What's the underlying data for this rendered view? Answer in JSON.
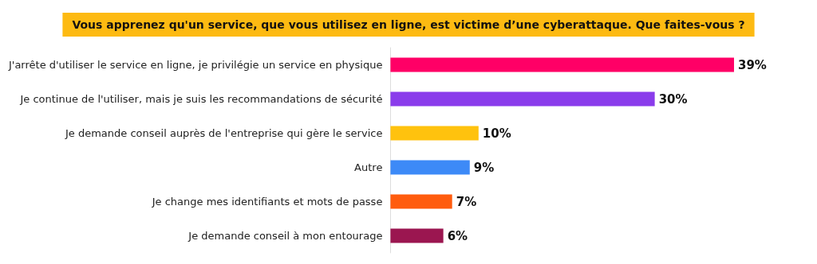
{
  "chart_data": {
    "type": "bar",
    "orientation": "horizontal",
    "title": "Vous apprenez qu'un service, que vous utilisez en ligne, est victime d’une cyberattaque. Que faites-vous ?",
    "categories": [
      "J'arrête d'utiliser le service en ligne, je privilégie un service en physique",
      "Je continue de l'utiliser, mais je suis les recommandations de sécurité",
      "Je demande conseil auprès de l'entreprise qui gère le service",
      "Autre",
      "Je change mes identifiants et mots de passe",
      "Je demande conseil à mon entourage"
    ],
    "values": [
      39,
      30,
      10,
      9,
      7,
      6
    ],
    "colors": [
      "#ff0066",
      "#8a3ceb",
      "#ffc20e",
      "#3d8af7",
      "#ff5c0e",
      "#9b1650"
    ],
    "value_labels": [
      "39%",
      "30%",
      "10%",
      "9%",
      "7%",
      "6%"
    ],
    "grid": false
  }
}
